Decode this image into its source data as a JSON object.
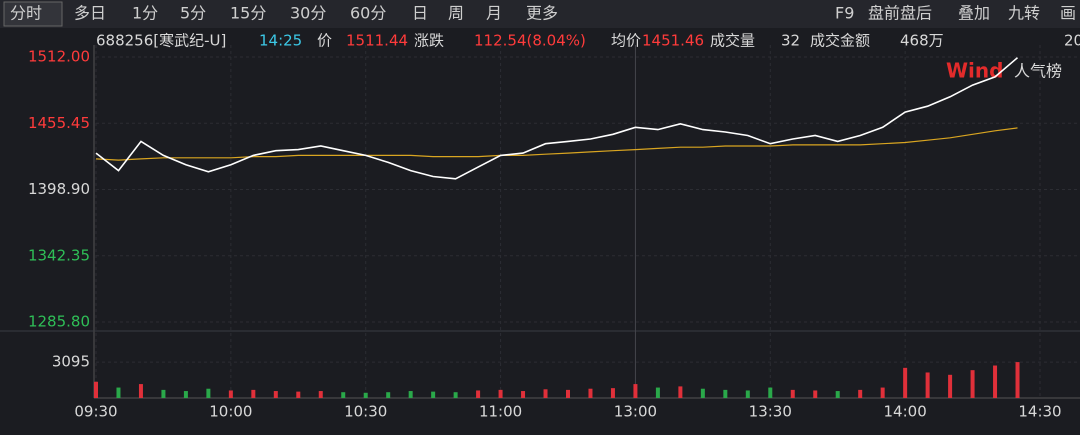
{
  "toolbar": {
    "left": [
      "分时",
      "多日",
      "1分",
      "5分",
      "15分",
      "30分",
      "60分",
      "日",
      "周",
      "月",
      "更多"
    ],
    "right": [
      "F9",
      "盘前盘后",
      "叠加",
      "九转",
      "画"
    ]
  },
  "info": {
    "code": "688256[寒武纪-U]",
    "time": "14:25",
    "price_label": "价",
    "price": "1511.44",
    "change_label": "涨跌",
    "change": "112.54(8.04%)",
    "avg_label": "均价",
    "avg": "1451.46",
    "volume_label": "成交量",
    "volume": "32",
    "amount_label": "成交金额",
    "amount": "468万",
    "cut": "20"
  },
  "logo": {
    "brand": "Wind",
    "text": "人气榜"
  },
  "chart_data": {
    "type": "line",
    "x": [
      "09:30",
      "09:35",
      "09:40",
      "09:45",
      "09:50",
      "09:55",
      "10:00",
      "10:05",
      "10:10",
      "10:15",
      "10:20",
      "10:25",
      "10:30",
      "10:35",
      "10:40",
      "10:45",
      "10:50",
      "10:55",
      "11:00",
      "11:05",
      "11:10",
      "11:15",
      "11:20",
      "11:25",
      "13:00",
      "13:05",
      "13:10",
      "13:15",
      "13:20",
      "13:25",
      "13:30",
      "13:35",
      "13:40",
      "13:45",
      "13:50",
      "13:55",
      "14:00",
      "14:05",
      "14:10",
      "14:15",
      "14:20",
      "14:25"
    ],
    "series": [
      {
        "name": "价",
        "color": "#ffffff",
        "values": [
          1430,
          1415,
          1440,
          1428,
          1420,
          1414,
          1420,
          1428,
          1432,
          1433,
          1436,
          1432,
          1428,
          1422,
          1415,
          1410,
          1408,
          1418,
          1428,
          1430,
          1438,
          1440,
          1442,
          1446,
          1452,
          1450,
          1455,
          1450,
          1448,
          1445,
          1438,
          1442,
          1445,
          1440,
          1445,
          1452,
          1465,
          1470,
          1478,
          1488,
          1495,
          1511.44
        ]
      },
      {
        "name": "均价",
        "color": "#d9a521",
        "values": [
          1425,
          1424,
          1425,
          1426,
          1426,
          1426,
          1426,
          1427,
          1427,
          1428,
          1428,
          1428,
          1428,
          1428,
          1428,
          1427,
          1427,
          1427,
          1428,
          1428,
          1429,
          1430,
          1431,
          1432,
          1433,
          1434,
          1435,
          1435,
          1436,
          1436,
          1436,
          1437,
          1437,
          1437,
          1437,
          1438,
          1439,
          1441,
          1443,
          1446,
          1449,
          1451.46
        ]
      }
    ],
    "volume": {
      "values": [
        1400,
        900,
        1200,
        700,
        600,
        800,
        650,
        700,
        600,
        550,
        600,
        500,
        450,
        500,
        600,
        550,
        500,
        650,
        700,
        600,
        750,
        700,
        800,
        850,
        1200,
        900,
        1000,
        800,
        700,
        650,
        900,
        700,
        650,
        600,
        700,
        900,
        2600,
        2200,
        2000,
        2400,
        2800,
        3095
      ],
      "ylim": [
        0,
        5000
      ],
      "yticks": [
        3095
      ],
      "up_color": "#e0303a",
      "down_color": "#2aa84a"
    },
    "ylim": [
      1285.8,
      1512.0
    ],
    "yticks": [
      {
        "value": 1512.0,
        "label": "1512.00"
      },
      {
        "value": 1455.45,
        "label": "1455.45"
      },
      {
        "value": 1398.9,
        "label": "1398.90"
      },
      {
        "value": 1342.35,
        "label": "1342.35"
      },
      {
        "value": 1285.8,
        "label": "1285.80"
      }
    ],
    "xticks": [
      "09:30",
      "10:00",
      "10:30",
      "11:00",
      "13:00",
      "13:30",
      "14:00",
      "14:30"
    ],
    "grid": true
  }
}
